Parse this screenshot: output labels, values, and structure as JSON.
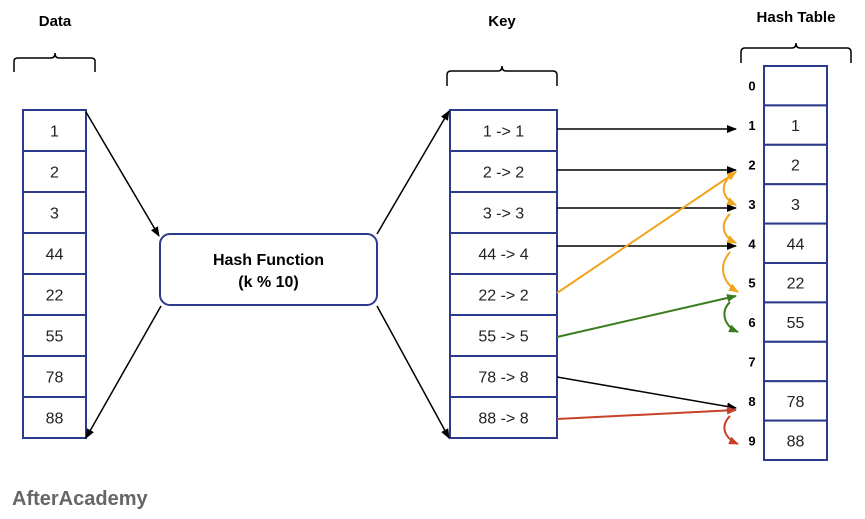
{
  "headings": {
    "data": "Data",
    "key": "Key",
    "hash_table": "Hash Table"
  },
  "data_values": [
    "1",
    "2",
    "3",
    "44",
    "22",
    "55",
    "78",
    "88"
  ],
  "hash_function": {
    "line1": "Hash Function",
    "line2": "(k % 10)"
  },
  "keys": [
    "1 -> 1",
    "2 -> 2",
    "3 -> 3",
    "44 -> 4",
    "22 -> 2",
    "55 -> 5",
    "78 -> 8",
    "88 -> 8"
  ],
  "table_indices": [
    "0",
    "1",
    "2",
    "3",
    "4",
    "5",
    "6",
    "7",
    "8",
    "9"
  ],
  "table_values": [
    "",
    "1",
    "2",
    "3",
    "44",
    "22",
    "55",
    "",
    "78",
    "88"
  ],
  "brand": "AfterAcademy",
  "colors": {
    "box_border": "#2b3a8c",
    "direct_arrow": "#000000",
    "probe_22": "#f0a51c",
    "probe_55": "#3a7d1e",
    "probe_88": "#c8402a"
  }
}
